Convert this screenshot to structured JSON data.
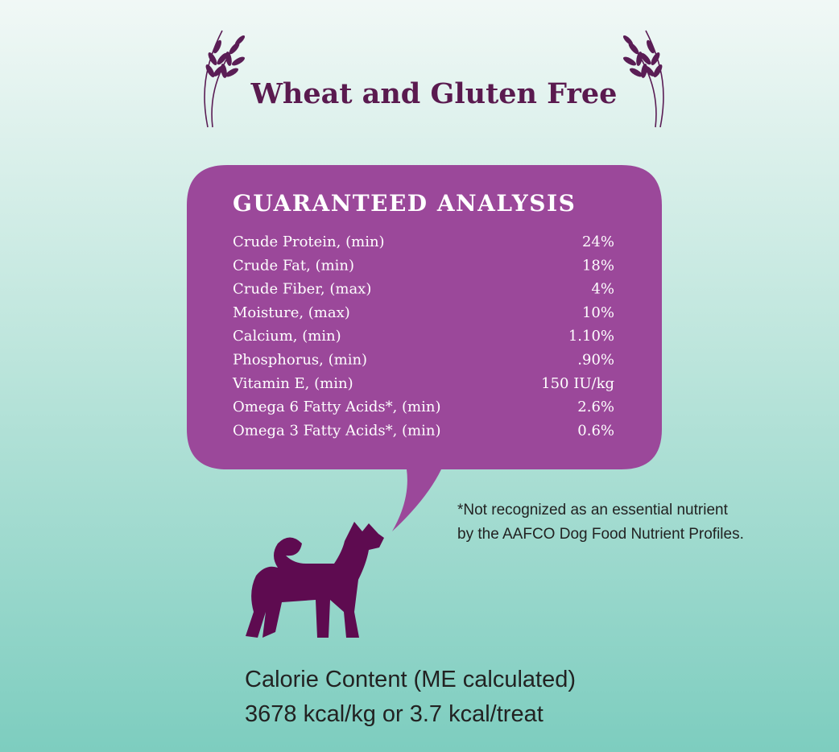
{
  "header": {
    "title": "Wheat and Gluten Free"
  },
  "analysis": {
    "title": "GUARANTEED ANALYSIS",
    "rows": [
      [
        "Crude Protein, (min)",
        "24%"
      ],
      [
        "Crude Fat, (min)",
        "18%"
      ],
      [
        "Crude Fiber, (max)",
        "4%"
      ],
      [
        "Moisture, (max)",
        "10%"
      ],
      [
        "Calcium, (min)",
        "1.10%"
      ],
      [
        "Phosphorus, (min)",
        ".90%"
      ],
      [
        "Vitamin E, (min)",
        "150 IU/kg"
      ],
      [
        "Omega 6 Fatty Acids*, (min)",
        "2.6%"
      ],
      [
        "Omega 3 Fatty Acids*, (min)",
        "0.6%"
      ]
    ]
  },
  "footnote": [
    "*Not recognized as an essential nutrient",
    "by the AAFCO Dog Food Nutrient Profiles."
  ],
  "calorie": [
    "Calorie Content (ME calculated)",
    "3678 kcal/kg or 3.7 kcal/treat"
  ]
}
